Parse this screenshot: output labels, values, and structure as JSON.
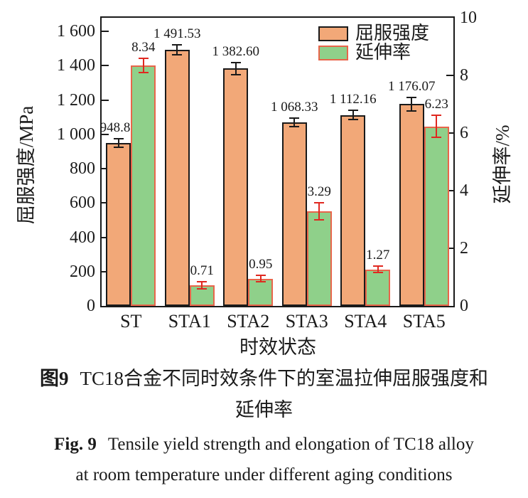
{
  "chart_data": {
    "type": "bar",
    "categories": [
      "ST",
      "STA1",
      "STA2",
      "STA3",
      "STA4",
      "STA5"
    ],
    "series": [
      {
        "name": "屈服强度",
        "axis": "left",
        "color": "#f2a878",
        "border": "#1a1a1a",
        "error_color": "#1a1a1a",
        "values": [
          948.89,
          1491.53,
          1382.6,
          1068.33,
          1112.16,
          1176.07
        ],
        "errors": [
          25,
          30,
          35,
          25,
          28,
          40
        ],
        "labels": [
          "948.89",
          "1 491.53",
          "1 382.60",
          "1 068.33",
          "1 112.16",
          "1 176.07"
        ]
      },
      {
        "name": "延伸率",
        "axis": "right",
        "color": "#8fd08a",
        "border": "#e8654a",
        "error_color": "#e02820",
        "values": [
          8.34,
          0.71,
          0.95,
          3.29,
          1.27,
          6.23
        ],
        "errors": [
          0.25,
          0.12,
          0.12,
          0.3,
          0.12,
          0.38
        ],
        "labels": [
          "8.34",
          "0.71",
          "0.95",
          "3.29",
          "1.27",
          "6.23"
        ]
      }
    ],
    "xlabel": "时效状态",
    "ylabel_left": "屈服强度/MPa",
    "ylabel_right": "延伸率/%",
    "left_axis": {
      "min": 0,
      "max": 1600,
      "ticks": [
        0,
        200,
        400,
        600,
        800,
        1000,
        1200,
        1400,
        1600
      ],
      "tick_labels": [
        "0",
        "200",
        "400",
        "600",
        "800",
        "1 000",
        "1 200",
        "1 400",
        "1 600"
      ]
    },
    "right_axis": {
      "min": 0,
      "max": 10,
      "ticks": [
        0,
        2,
        4,
        6,
        8,
        10
      ],
      "tick_labels": [
        "0",
        "2",
        "4",
        "6",
        "8",
        "10"
      ]
    },
    "legend_position": "top-right",
    "grid": false
  },
  "caption_zh": {
    "label": "图9",
    "line1": "TC18合金不同时效条件下的室温拉伸屈服强度和",
    "line2": "延伸率"
  },
  "caption_en": {
    "label": "Fig. 9",
    "line1": "Tensile yield strength and elongation of TC18 alloy",
    "line2": "at room temperature under different aging conditions"
  }
}
